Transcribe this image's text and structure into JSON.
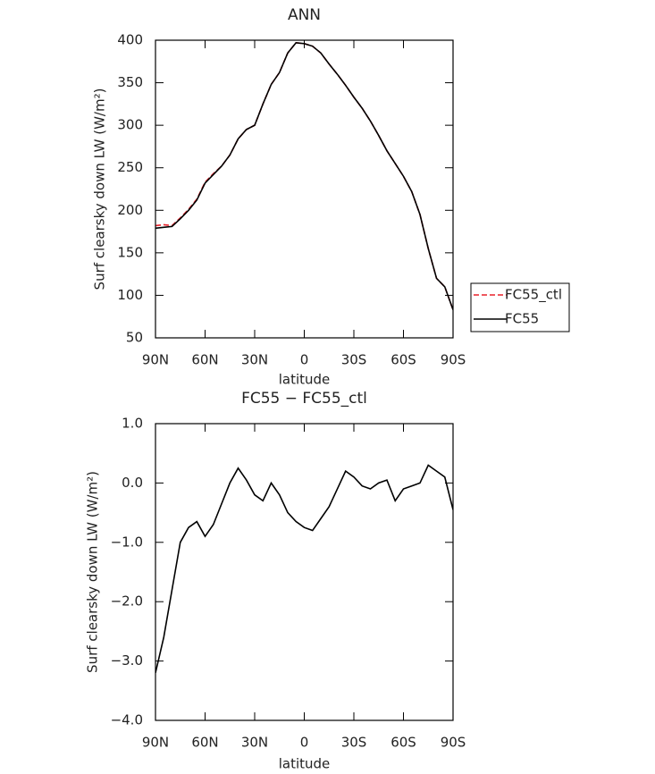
{
  "chart_data": [
    {
      "type": "line",
      "title": "ANN",
      "xlabel": "latitude",
      "ylabel": "Surf clearsky down LW (W/m²)",
      "x": [
        90,
        85,
        80,
        75,
        70,
        65,
        60,
        55,
        50,
        45,
        40,
        35,
        30,
        25,
        20,
        15,
        10,
        5,
        0,
        -5,
        -10,
        -15,
        -20,
        -25,
        -30,
        -35,
        -40,
        -45,
        -50,
        -55,
        -60,
        -65,
        -70,
        -75,
        -80,
        -85,
        -90
      ],
      "series": [
        {
          "name": "FC55_ctl",
          "color": "#e8202a",
          "dashed": true,
          "values": [
            182,
            183,
            182,
            191,
            201,
            213,
            233,
            243,
            252,
            265,
            284,
            295,
            300,
            325,
            348,
            362,
            385,
            397,
            396,
            393,
            385,
            372,
            360,
            347,
            333,
            320,
            305,
            288,
            270,
            255,
            240,
            222,
            195,
            155,
            120,
            110,
            83
          ]
        },
        {
          "name": "FC55",
          "color": "#000000",
          "dashed": false,
          "values": [
            179,
            180,
            181,
            190,
            200,
            212,
            232,
            242,
            252,
            265,
            284,
            295,
            300,
            325,
            348,
            362,
            385,
            397,
            396,
            393,
            385,
            372,
            360,
            347,
            333,
            320,
            305,
            288,
            270,
            255,
            240,
            222,
            195,
            155,
            120,
            110,
            83
          ]
        }
      ],
      "xlim": [
        90,
        -90
      ],
      "xticks": [
        {
          "value": 90,
          "label": "90N"
        },
        {
          "value": 60,
          "label": "60N"
        },
        {
          "value": 30,
          "label": "30N"
        },
        0,
        {
          "value": -30,
          "label": "30S"
        },
        {
          "value": -60,
          "label": "60S"
        },
        {
          "value": -90,
          "label": "90S"
        }
      ],
      "ylim": [
        50,
        400
      ],
      "yticks": [
        50,
        100,
        150,
        200,
        250,
        300,
        350,
        400
      ],
      "legend": "right"
    },
    {
      "type": "line",
      "title": "FC55 − FC55_ctl",
      "xlabel": "latitude",
      "ylabel": "Surf clearsky down LW (W/m²)",
      "x": [
        90,
        85,
        80,
        75,
        70,
        65,
        60,
        55,
        50,
        45,
        40,
        35,
        30,
        25,
        20,
        15,
        10,
        5,
        0,
        -5,
        -10,
        -15,
        -20,
        -25,
        -30,
        -35,
        -40,
        -45,
        -50,
        -55,
        -60,
        -65,
        -70,
        -75,
        -80,
        -85,
        -90
      ],
      "series": [
        {
          "color": "#000000",
          "dashed": false,
          "values": [
            -3.2,
            -2.6,
            -1.8,
            -1.0,
            -0.75,
            -0.65,
            -0.9,
            -0.7,
            -0.35,
            0.0,
            0.25,
            0.05,
            -0.2,
            -0.3,
            0.0,
            -0.2,
            -0.5,
            -0.65,
            -0.75,
            -0.8,
            -0.6,
            -0.4,
            -0.1,
            0.2,
            0.1,
            -0.05,
            -0.1,
            0.0,
            0.05,
            -0.3,
            -0.1,
            -0.05,
            0.0,
            0.3,
            0.2,
            0.1,
            -0.45
          ]
        }
      ],
      "xlim": [
        90,
        -90
      ],
      "xticks": [
        {
          "value": 90,
          "label": "90N"
        },
        {
          "value": 60,
          "label": "60N"
        },
        {
          "value": 30,
          "label": "30N"
        },
        0,
        {
          "value": -30,
          "label": "30S"
        },
        {
          "value": -60,
          "label": "60S"
        },
        {
          "value": -90,
          "label": "90S"
        }
      ],
      "ylim": [
        -4,
        1
      ],
      "yticks": [
        {
          "value": -4,
          "label": "−4.0"
        },
        {
          "value": -3,
          "label": "−3.0"
        },
        {
          "value": -2,
          "label": "−2.0"
        },
        {
          "value": -1,
          "label": "−1.0"
        },
        {
          "value": 0,
          "label": "0.0"
        },
        {
          "value": 1,
          "label": "1.0"
        }
      ]
    }
  ]
}
